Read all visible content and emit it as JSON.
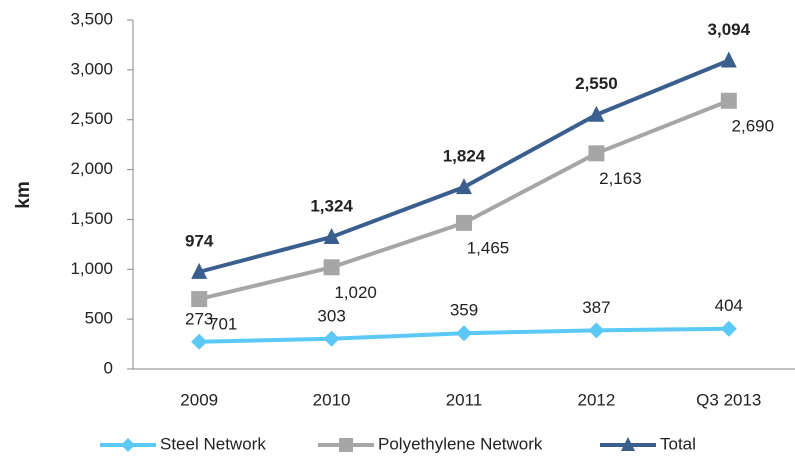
{
  "chart_data": {
    "type": "line",
    "y_label": "km",
    "categories": [
      "2009",
      "2010",
      "2011",
      "2012",
      "Q3 2013"
    ],
    "series": [
      {
        "name": "Steel Network",
        "color": "#5bc8f5",
        "marker": "diamond",
        "values": [
          273,
          303,
          359,
          387,
          404
        ],
        "value_labels": [
          "273",
          "303",
          "359",
          "387",
          "404"
        ]
      },
      {
        "name": "Polyethylene Network",
        "color": "#a6a6a6",
        "marker": "square",
        "values": [
          701,
          1020,
          1465,
          2163,
          2690
        ],
        "value_labels": [
          "701",
          "1,020",
          "1,465",
          "2,163",
          "2,690"
        ]
      },
      {
        "name": "Total",
        "color": "#3a5f8f",
        "marker": "triangle",
        "values": [
          974,
          1324,
          1824,
          2550,
          3094
        ],
        "value_labels": [
          "974",
          "1,324",
          "1,824",
          "2,550",
          "3,094"
        ]
      }
    ],
    "ylim": [
      0,
      3500
    ],
    "yticks": [
      0,
      500,
      {
        "value": 1000,
        "label": "1,000"
      },
      {
        "value": 1500,
        "label": "1,500"
      },
      {
        "value": 2000,
        "label": "2,000"
      },
      {
        "value": 2500,
        "label": "2,500"
      },
      {
        "value": 3000,
        "label": "3,000"
      },
      {
        "value": 3500,
        "label": "3,500"
      }
    ],
    "grid": false,
    "legend": "bottom"
  }
}
